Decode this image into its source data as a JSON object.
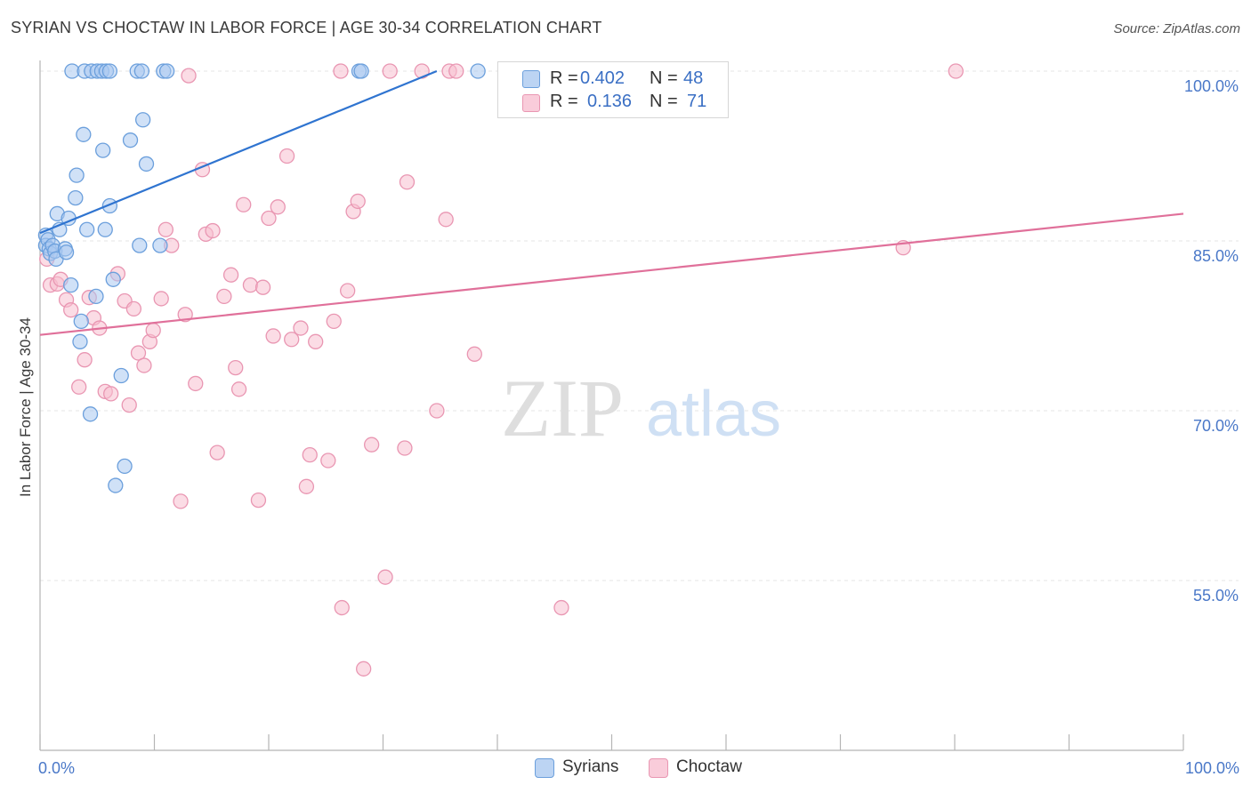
{
  "header": {
    "title": "SYRIAN VS CHOCTAW IN LABOR FORCE | AGE 30-34 CORRELATION CHART",
    "source": "Source: ZipAtlas.com"
  },
  "watermark": {
    "part1": "ZIP",
    "part2": "atlas"
  },
  "legend": {
    "syrians": {
      "r_label": "R =",
      "r_value": "0.402",
      "n_label": "N =",
      "n_value": "48"
    },
    "choctaw": {
      "r_label": "R =",
      "r_value": "0.136",
      "n_label": "N =",
      "n_value": "71"
    }
  },
  "bottom_legend": {
    "syrians": "Syrians",
    "choctaw": "Choctaw"
  },
  "colors": {
    "syrians_fill": "#a9c8f0",
    "syrians_stroke": "#6b9fdc",
    "syrians_line": "#2f74d0",
    "choctaw_fill": "#f7bfd0",
    "choctaw_stroke": "#e996b2",
    "choctaw_line": "#e0709a",
    "tick_label": "#4a78c8",
    "grid": "#e4e4e4"
  },
  "chart_data": {
    "type": "scatter",
    "title": "SYRIAN VS CHOCTAW IN LABOR FORCE | AGE 30-34 CORRELATION CHART",
    "xlabel": "",
    "ylabel": "In Labor Force | Age 30-34",
    "xlim": [
      0,
      100
    ],
    "ylim": [
      40,
      102
    ],
    "x_tick_labels": [
      {
        "value": 0,
        "label": "0.0%"
      },
      {
        "value": 100,
        "label": "100.0%"
      }
    ],
    "y_tick_labels": [
      {
        "value": 100,
        "label": "100.0%"
      },
      {
        "value": 85,
        "label": "85.0%"
      },
      {
        "value": 70,
        "label": "70.0%"
      },
      {
        "value": 55,
        "label": "55.0%"
      }
    ],
    "y_gridlines": [
      100,
      85,
      70,
      55
    ],
    "x_minor_ticks": [
      0,
      10,
      20,
      30,
      40,
      50,
      60,
      70,
      80,
      90,
      100
    ],
    "series": [
      {
        "name": "Syrians",
        "r": 0.402,
        "n": 48,
        "trend": {
          "x0": 0,
          "y0": 85.7,
          "x1": 34.7,
          "y1": 100.0
        },
        "points": [
          {
            "x": 0.5,
            "y": 85.5
          },
          {
            "x": 0.5,
            "y": 84.6
          },
          {
            "x": 0.7,
            "y": 85.1
          },
          {
            "x": 0.8,
            "y": 84.3
          },
          {
            "x": 0.9,
            "y": 83.9
          },
          {
            "x": 1.1,
            "y": 84.6
          },
          {
            "x": 1.3,
            "y": 84.1
          },
          {
            "x": 1.4,
            "y": 83.4
          },
          {
            "x": 1.5,
            "y": 87.4
          },
          {
            "x": 1.7,
            "y": 86.0
          },
          {
            "x": 2.2,
            "y": 84.3
          },
          {
            "x": 2.3,
            "y": 84.0
          },
          {
            "x": 2.5,
            "y": 87.0
          },
          {
            "x": 2.7,
            "y": 81.1
          },
          {
            "x": 3.1,
            "y": 88.8
          },
          {
            "x": 3.2,
            "y": 90.8
          },
          {
            "x": 3.5,
            "y": 76.1
          },
          {
            "x": 3.6,
            "y": 77.9
          },
          {
            "x": 3.8,
            "y": 94.4
          },
          {
            "x": 4.1,
            "y": 86.0
          },
          {
            "x": 4.4,
            "y": 69.7
          },
          {
            "x": 4.9,
            "y": 80.1
          },
          {
            "x": 5.5,
            "y": 93.0
          },
          {
            "x": 5.7,
            "y": 86.0
          },
          {
            "x": 6.1,
            "y": 88.1
          },
          {
            "x": 6.4,
            "y": 81.6
          },
          {
            "x": 7.1,
            "y": 73.1
          },
          {
            "x": 7.4,
            "y": 65.1
          },
          {
            "x": 6.6,
            "y": 63.4
          },
          {
            "x": 7.9,
            "y": 93.9
          },
          {
            "x": 8.7,
            "y": 84.6
          },
          {
            "x": 9.0,
            "y": 95.7
          },
          {
            "x": 9.3,
            "y": 91.8
          },
          {
            "x": 10.5,
            "y": 84.6
          },
          {
            "x": 2.8,
            "y": 100.0
          },
          {
            "x": 3.9,
            "y": 100.0
          },
          {
            "x": 4.5,
            "y": 100.0
          },
          {
            "x": 5.0,
            "y": 100.0
          },
          {
            "x": 5.4,
            "y": 100.0
          },
          {
            "x": 5.8,
            "y": 100.0
          },
          {
            "x": 6.1,
            "y": 100.0
          },
          {
            "x": 8.5,
            "y": 100.0
          },
          {
            "x": 8.9,
            "y": 100.0
          },
          {
            "x": 10.8,
            "y": 100.0
          },
          {
            "x": 11.1,
            "y": 100.0
          },
          {
            "x": 27.9,
            "y": 100.0
          },
          {
            "x": 28.1,
            "y": 100.0
          },
          {
            "x": 38.3,
            "y": 100.0
          }
        ]
      },
      {
        "name": "Choctaw",
        "r": 0.136,
        "n": 71,
        "trend": {
          "x0": 0,
          "y0": 76.7,
          "x1": 100,
          "y1": 87.4
        },
        "points": [
          {
            "x": 0.6,
            "y": 83.4
          },
          {
            "x": 0.9,
            "y": 81.1
          },
          {
            "x": 1.5,
            "y": 81.2
          },
          {
            "x": 1.8,
            "y": 81.6
          },
          {
            "x": 2.3,
            "y": 79.8
          },
          {
            "x": 2.7,
            "y": 78.9
          },
          {
            "x": 3.4,
            "y": 72.1
          },
          {
            "x": 3.9,
            "y": 74.5
          },
          {
            "x": 4.3,
            "y": 80.0
          },
          {
            "x": 4.7,
            "y": 78.2
          },
          {
            "x": 5.2,
            "y": 77.3
          },
          {
            "x": 5.7,
            "y": 71.7
          },
          {
            "x": 6.2,
            "y": 71.5
          },
          {
            "x": 6.8,
            "y": 82.1
          },
          {
            "x": 7.4,
            "y": 79.7
          },
          {
            "x": 7.8,
            "y": 70.5
          },
          {
            "x": 8.2,
            "y": 79.0
          },
          {
            "x": 8.6,
            "y": 75.1
          },
          {
            "x": 9.1,
            "y": 74.0
          },
          {
            "x": 9.6,
            "y": 76.1
          },
          {
            "x": 9.9,
            "y": 77.1
          },
          {
            "x": 10.6,
            "y": 79.9
          },
          {
            "x": 11.0,
            "y": 86.0
          },
          {
            "x": 11.5,
            "y": 84.6
          },
          {
            "x": 12.3,
            "y": 62.0
          },
          {
            "x": 12.7,
            "y": 78.5
          },
          {
            "x": 13.0,
            "y": 99.6
          },
          {
            "x": 13.6,
            "y": 72.4
          },
          {
            "x": 14.2,
            "y": 91.3
          },
          {
            "x": 14.5,
            "y": 85.6
          },
          {
            "x": 15.1,
            "y": 85.9
          },
          {
            "x": 15.5,
            "y": 66.3
          },
          {
            "x": 16.1,
            "y": 80.1
          },
          {
            "x": 16.7,
            "y": 82.0
          },
          {
            "x": 17.1,
            "y": 73.8
          },
          {
            "x": 17.4,
            "y": 71.9
          },
          {
            "x": 17.8,
            "y": 88.2
          },
          {
            "x": 18.4,
            "y": 81.1
          },
          {
            "x": 19.1,
            "y": 62.1
          },
          {
            "x": 19.5,
            "y": 80.9
          },
          {
            "x": 20.0,
            "y": 87.0
          },
          {
            "x": 20.4,
            "y": 76.6
          },
          {
            "x": 20.8,
            "y": 88.0
          },
          {
            "x": 21.6,
            "y": 92.5
          },
          {
            "x": 22.0,
            "y": 76.3
          },
          {
            "x": 22.8,
            "y": 77.3
          },
          {
            "x": 23.3,
            "y": 63.3
          },
          {
            "x": 23.6,
            "y": 66.1
          },
          {
            "x": 24.1,
            "y": 76.1
          },
          {
            "x": 25.2,
            "y": 65.6
          },
          {
            "x": 25.7,
            "y": 77.9
          },
          {
            "x": 26.9,
            "y": 80.6
          },
          {
            "x": 27.4,
            "y": 87.6
          },
          {
            "x": 27.8,
            "y": 88.5
          },
          {
            "x": 28.3,
            "y": 47.2
          },
          {
            "x": 29.0,
            "y": 67.0
          },
          {
            "x": 30.2,
            "y": 55.3
          },
          {
            "x": 30.6,
            "y": 100.0
          },
          {
            "x": 31.9,
            "y": 66.7
          },
          {
            "x": 32.1,
            "y": 90.2
          },
          {
            "x": 33.4,
            "y": 100.0
          },
          {
            "x": 34.7,
            "y": 70.0
          },
          {
            "x": 35.5,
            "y": 86.9
          },
          {
            "x": 35.8,
            "y": 100.0
          },
          {
            "x": 36.4,
            "y": 100.0
          },
          {
            "x": 38.0,
            "y": 75.0
          },
          {
            "x": 45.6,
            "y": 52.6
          },
          {
            "x": 26.4,
            "y": 52.6
          },
          {
            "x": 26.3,
            "y": 100.0
          },
          {
            "x": 75.5,
            "y": 84.4
          },
          {
            "x": 80.1,
            "y": 100.0
          }
        ]
      }
    ]
  }
}
